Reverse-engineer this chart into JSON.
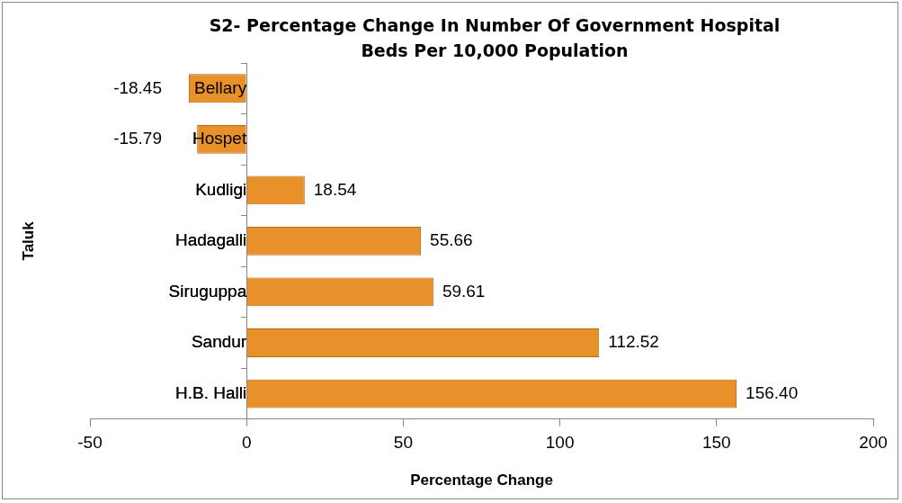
{
  "chart_data": {
    "type": "bar",
    "orientation": "horizontal",
    "title": "S2- Percentage Change In Number Of Government Hospital Beds Per 10,000 Population",
    "xlabel": "Percentage Change",
    "ylabel": "Taluk",
    "categories": [
      "Bellary",
      "Hospet",
      "Kudligi",
      "Hadagalli",
      "Siruguppa",
      "Sandur",
      "H.B. Halli"
    ],
    "values": [
      -18.45,
      -15.79,
      18.54,
      55.66,
      59.61,
      112.52,
      156.4
    ],
    "value_labels": [
      "-18.45",
      "-15.79",
      "18.54",
      "55.66",
      "59.61",
      "112.52",
      "156.40"
    ],
    "color": "#e8902a",
    "xlim": [
      -50,
      200
    ],
    "xticks": [
      -50,
      0,
      50,
      100,
      150,
      200
    ],
    "grid": false,
    "legend": false
  }
}
